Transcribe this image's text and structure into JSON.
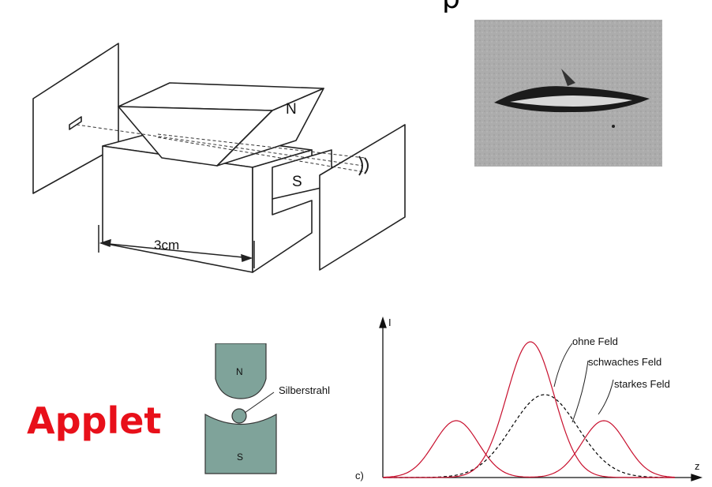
{
  "header": {
    "cut_letter": "p"
  },
  "apparatus": {
    "magnet_north_label": "N",
    "magnet_south_label": "S",
    "scale_label": "3cm"
  },
  "photo": {
    "description_name": "silver-deposit-photo"
  },
  "applet_link": {
    "label": "Applet",
    "color": "#e8101a"
  },
  "poles_diagram": {
    "north_label": "N",
    "south_label": "S",
    "beam_label": "Silberstrahl",
    "fill_color": "#7fa39a"
  },
  "chart_data": {
    "type": "line",
    "panel_label": "c)",
    "ylabel": "I",
    "xlabel": "z",
    "series": [
      {
        "name": "ohne Feld",
        "style": "dashed",
        "color": "#000000"
      },
      {
        "name": "schwaches Feld",
        "style": "solid",
        "color": "#c8102e"
      },
      {
        "name": "starkes Feld",
        "style": "solid",
        "color": "#c8102e"
      }
    ],
    "legend_placement": "top-right",
    "grid": false
  }
}
